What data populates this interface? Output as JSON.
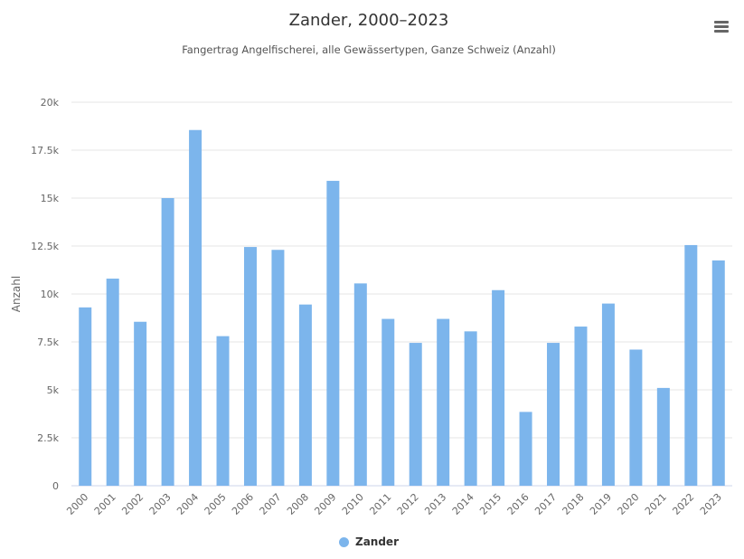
{
  "header": {
    "title": "Zander, 2000–2023",
    "subtitle": "Fangertrag Angelfischerei, alle Gewässertypen, Ganze Schweiz (Anzahl)",
    "menu_icon": "hamburger-menu-icon"
  },
  "legend": {
    "label": "Zander",
    "position": "bottom-center"
  },
  "colors": {
    "series": "#7cb5ec",
    "grid": "#e6e6e6",
    "text": "#333333"
  },
  "chart_data": {
    "type": "bar",
    "title": "Zander, 2000–2023",
    "subtitle": "Fangertrag Angelfischerei, alle Gewässertypen, Ganze Schweiz (Anzahl)",
    "xlabel": "",
    "ylabel": "Anzahl",
    "ylim": [
      0,
      20000
    ],
    "yticks": [
      0,
      2500,
      5000,
      7500,
      10000,
      12500,
      15000,
      17500,
      20000
    ],
    "ytick_labels": [
      "0",
      "2.5k",
      "5k",
      "7.5k",
      "10k",
      "12.5k",
      "15k",
      "17.5k",
      "20k"
    ],
    "grid": true,
    "legend_position": "bottom",
    "categories": [
      "2000",
      "2001",
      "2002",
      "2003",
      "2004",
      "2005",
      "2006",
      "2007",
      "2008",
      "2009",
      "2010",
      "2011",
      "2012",
      "2013",
      "2014",
      "2015",
      "2016",
      "2017",
      "2018",
      "2019",
      "2020",
      "2021",
      "2022",
      "2023"
    ],
    "series": [
      {
        "name": "Zander",
        "color": "#7cb5ec",
        "values": [
          9300,
          10800,
          8550,
          15000,
          18550,
          7800,
          12450,
          12300,
          9450,
          15900,
          10550,
          8700,
          7450,
          8700,
          8050,
          10200,
          3850,
          7450,
          8300,
          9500,
          7100,
          5100,
          12550,
          11750
        ]
      }
    ]
  }
}
